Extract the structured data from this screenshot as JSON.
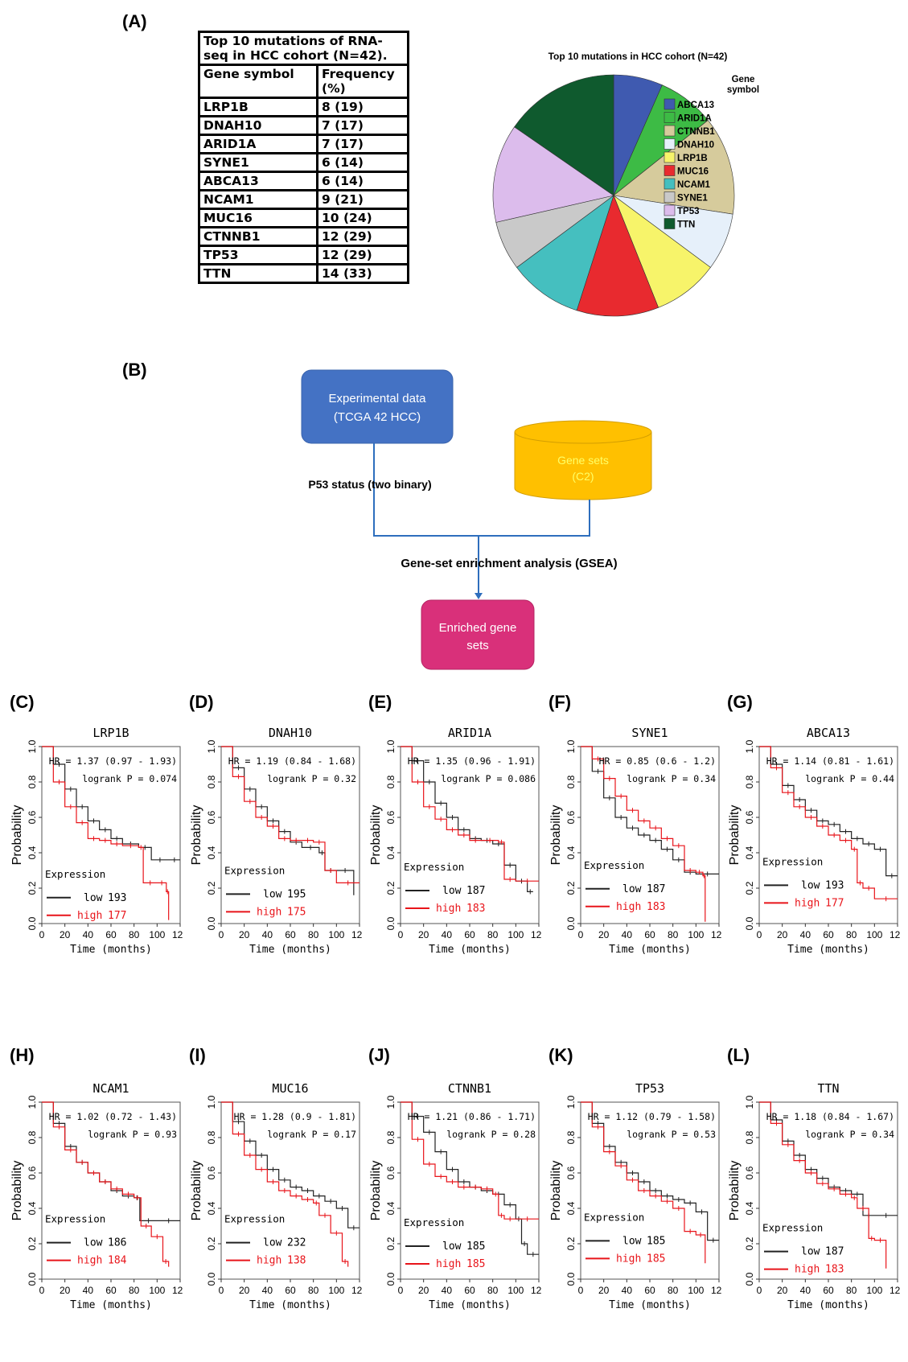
{
  "panel_labels": {
    "A": "(A)",
    "B": "(B)",
    "C": "(C)",
    "D": "(D)",
    "E": "(E)",
    "F": "(F)",
    "G": "(G)",
    "H": "(H)",
    "I": "(I)",
    "J": "(J)",
    "K": "(K)",
    "L": "(L)"
  },
  "table": {
    "caption": "Top 10 mutations of RNA-seq in HCC cohort (N=42).",
    "headers": [
      "Gene symbol",
      "Frequency (%)"
    ],
    "rows": [
      [
        "LRP1B",
        "8 (19)"
      ],
      [
        "DNAH10",
        "7 (17)"
      ],
      [
        "ARID1A",
        "7 (17)"
      ],
      [
        "SYNE1",
        "6 (14)"
      ],
      [
        "ABCA13",
        "6 (14)"
      ],
      [
        "NCAM1",
        "9 (21)"
      ],
      [
        "MUC16",
        "10 (24)"
      ],
      [
        "CTNNB1",
        "12 (29)"
      ],
      [
        "TP53",
        "12 (29)"
      ],
      [
        "TTN",
        "14 (33)"
      ]
    ]
  },
  "flowchart": {
    "box1": [
      "Experimental data",
      "(TCGA 42 HCC)"
    ],
    "box2": [
      "Gene sets",
      "(C2)"
    ],
    "edge_label": "P53 status  (two binary)",
    "process_label": "Gene-set enrichment analysis (GSEA)",
    "box3": [
      "Enriched gene",
      "sets"
    ],
    "colors": {
      "box1": "#4472c4",
      "box2": "#ffc000",
      "box2_text": "#ffff66",
      "box3": "#d9307a",
      "line": "#2e6ebd"
    }
  },
  "km_common": {
    "ylabel": "Probability",
    "xlabel": "Time (months)",
    "legend_title": "Expression",
    "low_label": "low",
    "high_label": "high",
    "x_ticks": [
      "0",
      "20",
      "40",
      "60",
      "80",
      "100",
      "120"
    ],
    "y_ticks": [
      "0.0",
      "0.2",
      "0.4",
      "0.6",
      "0.8",
      "1.0"
    ],
    "colors": {
      "low": "#222222",
      "high": "#e8141a"
    }
  },
  "chart_data": [
    {
      "type": "pie",
      "title": "Top 10 mutations in HCC cohort (N=42)",
      "legend_title": "Gene symbol",
      "categories": [
        "ABCA13",
        "ARID1A",
        "CTNNB1",
        "DNAH10",
        "LRP1B",
        "MUC16",
        "NCAM1",
        "SYNE1",
        "TP53",
        "TTN"
      ],
      "values": [
        6,
        7,
        12,
        7,
        8,
        10,
        9,
        6,
        12,
        14
      ],
      "colors": [
        "#3f5ab0",
        "#3dbb45",
        "#d6cb9c",
        "#e6f0fa",
        "#f7f46a",
        "#e82a2f",
        "#45bfbf",
        "#c9c9c9",
        "#dcbcec",
        "#0f5a2e"
      ],
      "legend": "right"
    },
    {
      "type": "line",
      "panel": "C",
      "title": "LRP1B",
      "hr": "HR = 1.37 (0.97 - 1.93)",
      "p": "logrank P = 0.074",
      "low_n": "193",
      "high_n": "177",
      "xlim": [
        0,
        120
      ],
      "ylim": [
        0,
        1
      ],
      "legend_ypos": 0.26,
      "series": [
        {
          "name": "low",
          "x": [
            0,
            10,
            20,
            30,
            40,
            50,
            60,
            70,
            84,
            95,
            110,
            120
          ],
          "y": [
            1,
            0.9,
            0.76,
            0.66,
            0.58,
            0.53,
            0.48,
            0.45,
            0.43,
            0.36,
            0.36,
            0.36
          ]
        },
        {
          "name": "high",
          "x": [
            0,
            10,
            20,
            30,
            40,
            50,
            60,
            70,
            84,
            88,
            100,
            108,
            110
          ],
          "y": [
            1,
            0.8,
            0.66,
            0.57,
            0.48,
            0.47,
            0.45,
            0.44,
            0.43,
            0.23,
            0.23,
            0.18,
            0.02
          ]
        }
      ]
    },
    {
      "type": "line",
      "panel": "D",
      "title": "DNAH10",
      "hr": "HR = 1.19 (0.84 - 1.68)",
      "p": "logrank P = 0.32",
      "low_n": "195",
      "high_n": "175",
      "xlim": [
        0,
        120
      ],
      "ylim": [
        0,
        1
      ],
      "legend_ypos": 0.28,
      "series": [
        {
          "name": "low",
          "x": [
            0,
            10,
            20,
            30,
            40,
            50,
            60,
            70,
            85,
            90,
            100,
            115
          ],
          "y": [
            1,
            0.88,
            0.76,
            0.66,
            0.58,
            0.52,
            0.46,
            0.43,
            0.4,
            0.3,
            0.3,
            0.16
          ]
        },
        {
          "name": "high",
          "x": [
            0,
            10,
            20,
            30,
            40,
            50,
            60,
            70,
            80,
            90,
            100,
            120
          ],
          "y": [
            1,
            0.83,
            0.69,
            0.6,
            0.55,
            0.48,
            0.47,
            0.47,
            0.46,
            0.3,
            0.23,
            0.23
          ]
        }
      ]
    },
    {
      "type": "line",
      "panel": "E",
      "title": "ARID1A",
      "hr": "HR = 1.35 (0.96 - 1.91)",
      "p": "logrank P = 0.086",
      "low_n": "187",
      "high_n": "183",
      "xlim": [
        0,
        120
      ],
      "ylim": [
        0,
        1
      ],
      "legend_ypos": 0.3,
      "series": [
        {
          "name": "low",
          "x": [
            0,
            10,
            20,
            30,
            40,
            50,
            60,
            70,
            80,
            90,
            100,
            110,
            115
          ],
          "y": [
            1,
            0.92,
            0.8,
            0.68,
            0.6,
            0.53,
            0.48,
            0.47,
            0.45,
            0.33,
            0.24,
            0.18,
            0.18
          ]
        },
        {
          "name": "high",
          "x": [
            0,
            10,
            20,
            30,
            40,
            50,
            60,
            70,
            85,
            90,
            100,
            120
          ],
          "y": [
            1,
            0.8,
            0.66,
            0.59,
            0.53,
            0.5,
            0.47,
            0.47,
            0.46,
            0.25,
            0.24,
            0.24
          ]
        }
      ]
    },
    {
      "type": "line",
      "panel": "F",
      "title": "SYNE1",
      "hr": "HR = 0.85 (0.6 - 1.2)",
      "p": "logrank P = 0.34",
      "low_n": "187",
      "high_n": "183",
      "xlim": [
        0,
        120
      ],
      "ylim": [
        0,
        1
      ],
      "legend_ypos": 0.31,
      "series": [
        {
          "name": "low",
          "x": [
            0,
            10,
            20,
            30,
            40,
            50,
            60,
            70,
            80,
            90,
            100,
            120
          ],
          "y": [
            1,
            0.86,
            0.71,
            0.6,
            0.54,
            0.5,
            0.47,
            0.42,
            0.36,
            0.29,
            0.28,
            0.28
          ]
        },
        {
          "name": "high",
          "x": [
            0,
            10,
            20,
            30,
            40,
            50,
            60,
            70,
            80,
            90,
            100,
            106,
            108
          ],
          "y": [
            1,
            0.93,
            0.82,
            0.72,
            0.64,
            0.58,
            0.54,
            0.48,
            0.44,
            0.3,
            0.29,
            0.27,
            0.01
          ]
        }
      ]
    },
    {
      "type": "line",
      "panel": "G",
      "title": "ABCA13",
      "hr": "HR = 1.14 (0.81 - 1.61)",
      "p": "logrank P = 0.44",
      "low_n": "193",
      "high_n": "177",
      "xlim": [
        0,
        120
      ],
      "ylim": [
        0,
        1
      ],
      "legend_ypos": 0.33,
      "series": [
        {
          "name": "low",
          "x": [
            0,
            10,
            20,
            30,
            40,
            50,
            60,
            70,
            80,
            90,
            100,
            110,
            120
          ],
          "y": [
            1,
            0.9,
            0.78,
            0.7,
            0.64,
            0.58,
            0.56,
            0.52,
            0.48,
            0.45,
            0.42,
            0.27,
            0.27
          ]
        },
        {
          "name": "high",
          "x": [
            0,
            10,
            20,
            30,
            40,
            50,
            60,
            70,
            80,
            85,
            90,
            100,
            120
          ],
          "y": [
            1,
            0.88,
            0.74,
            0.66,
            0.6,
            0.55,
            0.5,
            0.47,
            0.42,
            0.23,
            0.2,
            0.14,
            0.14
          ]
        }
      ]
    },
    {
      "type": "line",
      "panel": "H",
      "title": "NCAM1",
      "hr": "HR = 1.02 (0.72 - 1.43)",
      "p": "logrank P = 0.93",
      "low_n": "186",
      "high_n": "184",
      "xlim": [
        0,
        120
      ],
      "ylim": [
        0,
        1
      ],
      "legend_ypos": 0.32,
      "series": [
        {
          "name": "low",
          "x": [
            0,
            10,
            20,
            30,
            40,
            50,
            60,
            70,
            80,
            85,
            100,
            120
          ],
          "y": [
            1,
            0.88,
            0.75,
            0.66,
            0.6,
            0.55,
            0.5,
            0.47,
            0.46,
            0.33,
            0.33,
            0.33
          ]
        },
        {
          "name": "high",
          "x": [
            0,
            10,
            20,
            30,
            40,
            50,
            60,
            70,
            80,
            86,
            95,
            105,
            110
          ],
          "y": [
            1,
            0.86,
            0.73,
            0.66,
            0.6,
            0.55,
            0.51,
            0.48,
            0.46,
            0.3,
            0.24,
            0.1,
            0.07
          ]
        }
      ]
    },
    {
      "type": "line",
      "panel": "I",
      "title": "MUC16",
      "hr": "HR = 1.28 (0.9 - 1.81)",
      "p": "logrank P = 0.17",
      "low_n": "232",
      "high_n": "138",
      "xlim": [
        0,
        120
      ],
      "ylim": [
        0,
        1
      ],
      "legend_ypos": 0.32,
      "series": [
        {
          "name": "low",
          "x": [
            0,
            10,
            20,
            30,
            40,
            50,
            60,
            70,
            80,
            90,
            100,
            110,
            120
          ],
          "y": [
            1,
            0.89,
            0.78,
            0.7,
            0.62,
            0.56,
            0.52,
            0.5,
            0.47,
            0.44,
            0.4,
            0.29,
            0.29
          ]
        },
        {
          "name": "high",
          "x": [
            0,
            10,
            20,
            30,
            40,
            50,
            60,
            70,
            80,
            85,
            95,
            105,
            110
          ],
          "y": [
            1,
            0.82,
            0.7,
            0.62,
            0.55,
            0.5,
            0.47,
            0.45,
            0.43,
            0.36,
            0.26,
            0.1,
            0.07
          ]
        }
      ]
    },
    {
      "type": "line",
      "panel": "J",
      "title": "CTNNB1",
      "hr": "HR = 1.21 (0.86 - 1.71)",
      "p": "logrank P = 0.28",
      "low_n": "185",
      "high_n": "185",
      "xlim": [
        0,
        120
      ],
      "ylim": [
        0,
        1
      ],
      "legend_ypos": 0.3,
      "series": [
        {
          "name": "low",
          "x": [
            0,
            10,
            20,
            30,
            40,
            50,
            60,
            70,
            80,
            90,
            100,
            105,
            110,
            120
          ],
          "y": [
            1,
            0.92,
            0.83,
            0.72,
            0.62,
            0.55,
            0.52,
            0.5,
            0.48,
            0.42,
            0.34,
            0.2,
            0.14,
            0.14
          ]
        },
        {
          "name": "high",
          "x": [
            0,
            10,
            20,
            30,
            40,
            50,
            60,
            70,
            80,
            85,
            90,
            100,
            120
          ],
          "y": [
            1,
            0.79,
            0.65,
            0.58,
            0.55,
            0.52,
            0.52,
            0.51,
            0.48,
            0.36,
            0.34,
            0.34,
            0.34
          ]
        }
      ]
    },
    {
      "type": "line",
      "panel": "K",
      "title": "TP53",
      "hr": "HR = 1.12 (0.79 - 1.58)",
      "p": "logrank P = 0.53",
      "low_n": "185",
      "high_n": "185",
      "xlim": [
        0,
        120
      ],
      "ylim": [
        0,
        1
      ],
      "legend_ypos": 0.33,
      "series": [
        {
          "name": "low",
          "x": [
            0,
            10,
            20,
            30,
            40,
            50,
            60,
            70,
            80,
            90,
            100,
            110,
            120
          ],
          "y": [
            1,
            0.88,
            0.75,
            0.66,
            0.6,
            0.55,
            0.5,
            0.47,
            0.45,
            0.43,
            0.38,
            0.22,
            0.22
          ]
        },
        {
          "name": "high",
          "x": [
            0,
            10,
            20,
            30,
            40,
            50,
            60,
            70,
            80,
            90,
            100,
            108
          ],
          "y": [
            1,
            0.86,
            0.72,
            0.64,
            0.56,
            0.5,
            0.47,
            0.44,
            0.4,
            0.27,
            0.25,
            0.09
          ]
        }
      ]
    },
    {
      "type": "line",
      "panel": "L",
      "title": "TTN",
      "hr": "HR = 1.18 (0.84 - 1.67)",
      "p": "logrank P = 0.34",
      "low_n": "187",
      "high_n": "183",
      "xlim": [
        0,
        120
      ],
      "ylim": [
        0,
        1
      ],
      "legend_ypos": 0.27,
      "series": [
        {
          "name": "low",
          "x": [
            0,
            10,
            20,
            30,
            40,
            50,
            60,
            70,
            80,
            90,
            100,
            120
          ],
          "y": [
            1,
            0.9,
            0.78,
            0.7,
            0.62,
            0.57,
            0.52,
            0.5,
            0.48,
            0.36,
            0.36,
            0.36
          ]
        },
        {
          "name": "high",
          "x": [
            0,
            10,
            20,
            30,
            40,
            50,
            60,
            70,
            80,
            85,
            95,
            100,
            110
          ],
          "y": [
            1,
            0.88,
            0.76,
            0.67,
            0.6,
            0.54,
            0.51,
            0.48,
            0.46,
            0.4,
            0.23,
            0.22,
            0.06
          ]
        }
      ]
    }
  ]
}
